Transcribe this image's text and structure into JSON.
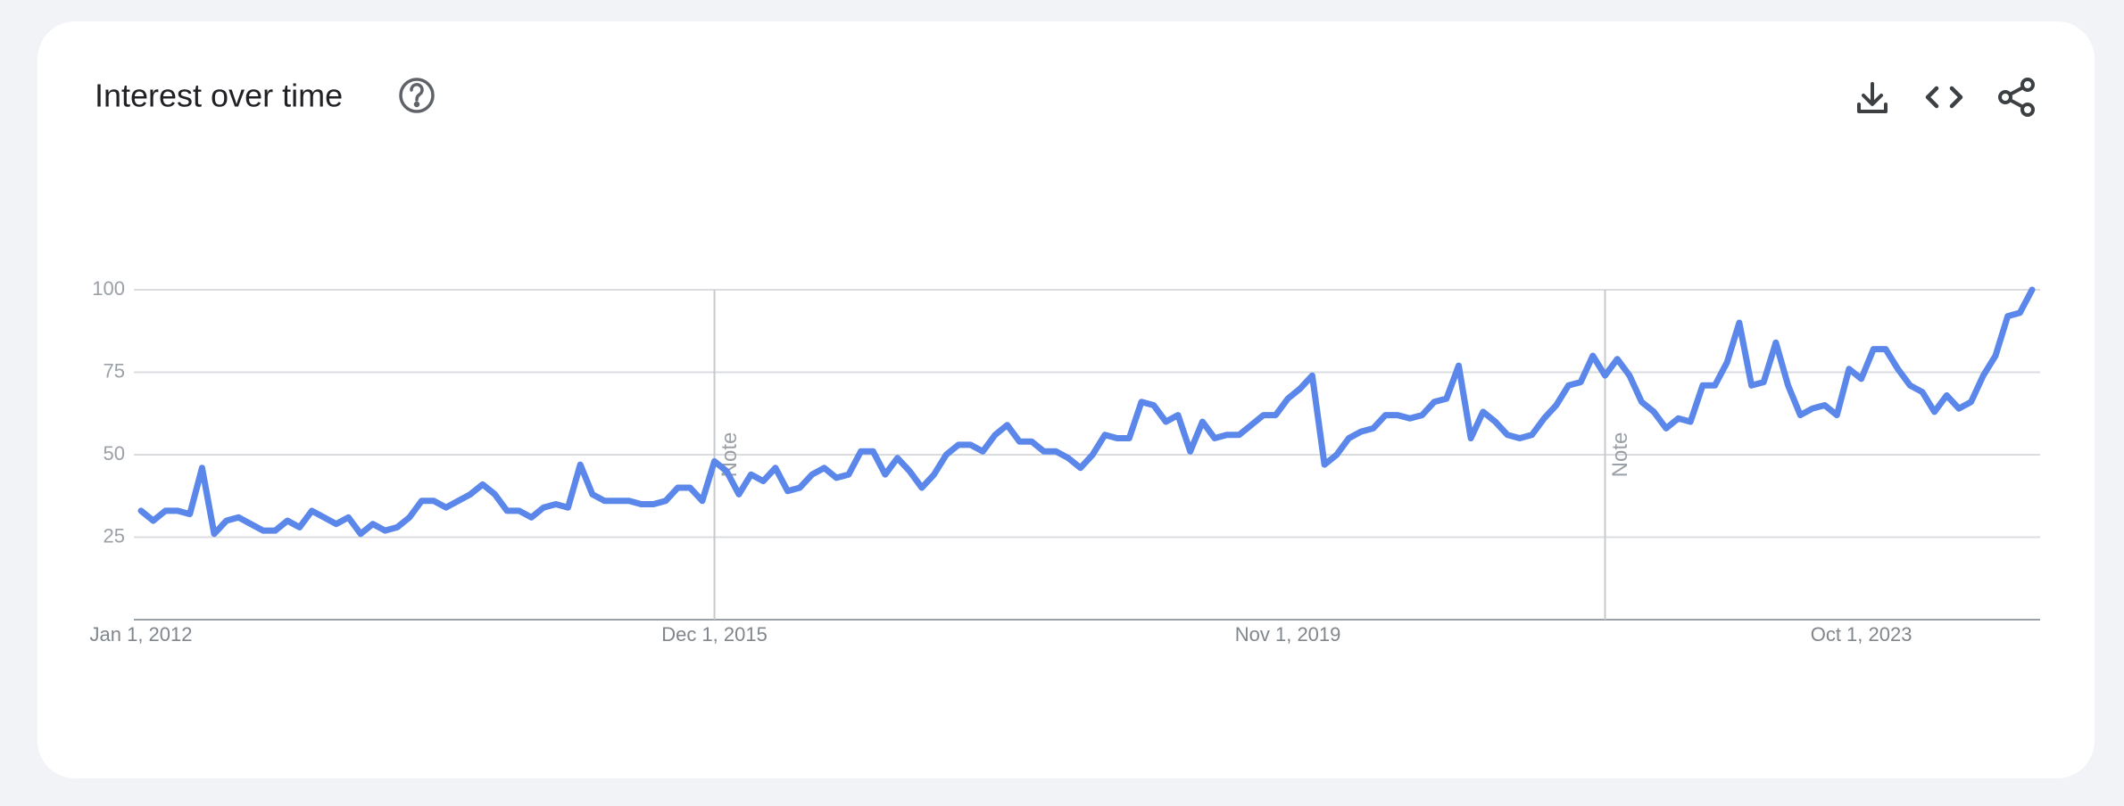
{
  "chart_data": {
    "type": "line",
    "title": "Interest over time",
    "categories": [
      "Jan 1, 2012",
      null,
      null,
      null,
      null,
      null,
      null,
      null,
      null,
      null,
      null,
      null,
      null,
      null,
      null,
      null,
      null,
      null,
      null,
      null,
      null,
      null,
      null,
      null,
      null,
      null,
      null,
      null,
      null,
      null,
      null,
      null,
      null,
      null,
      null,
      null,
      null,
      null,
      null,
      null,
      null,
      null,
      null,
      null,
      null,
      null,
      null,
      "Dec 1, 2015",
      null,
      null,
      null,
      null,
      null,
      null,
      null,
      null,
      null,
      null,
      null,
      null,
      null,
      null,
      null,
      null,
      null,
      null,
      null,
      null,
      null,
      null,
      null,
      null,
      null,
      null,
      null,
      null,
      null,
      null,
      null,
      null,
      null,
      null,
      null,
      null,
      null,
      null,
      null,
      null,
      null,
      null,
      null,
      null,
      null,
      null,
      "Nov 1, 2019",
      null,
      null,
      null,
      null,
      null,
      null,
      null,
      null,
      null,
      null,
      null,
      null,
      null,
      null,
      null,
      null,
      null,
      null,
      null,
      null,
      null,
      null,
      null,
      null,
      null,
      null,
      null,
      null,
      null,
      null,
      null,
      null,
      null,
      null,
      null,
      null,
      null,
      null,
      null,
      null,
      null,
      null,
      null,
      null,
      null,
      null,
      "Oct 1, 2023",
      null,
      null,
      null,
      null,
      null,
      null,
      null,
      null,
      null,
      null,
      null,
      null,
      null,
      null
    ],
    "series": [
      {
        "color": "#5b87ea",
        "values": [
          33,
          30,
          33,
          33,
          32,
          46,
          26,
          30,
          31,
          29,
          27,
          27,
          30,
          28,
          33,
          31,
          29,
          31,
          26,
          29,
          27,
          28,
          31,
          36,
          36,
          34,
          36,
          38,
          41,
          38,
          33,
          33,
          31,
          34,
          35,
          34,
          47,
          38,
          36,
          36,
          36,
          35,
          35,
          36,
          40,
          40,
          36,
          48,
          45,
          38,
          44,
          42,
          46,
          39,
          40,
          44,
          46,
          43,
          44,
          51,
          51,
          44,
          49,
          45,
          40,
          44,
          50,
          53,
          53,
          51,
          56,
          59,
          54,
          54,
          51,
          51,
          49,
          46,
          50,
          56,
          55,
          55,
          66,
          65,
          60,
          62,
          51,
          60,
          55,
          56,
          56,
          59,
          62,
          62,
          67,
          70,
          74,
          47,
          50,
          55,
          57,
          58,
          62,
          62,
          61,
          62,
          66,
          67,
          77,
          55,
          63,
          60,
          56,
          55,
          56,
          61,
          65,
          71,
          72,
          80,
          74,
          79,
          74,
          66,
          63,
          58,
          61,
          60,
          71,
          71,
          78,
          90,
          71,
          72,
          84,
          71,
          62,
          64,
          65,
          62,
          76,
          73,
          82,
          82,
          76,
          71,
          69,
          63,
          68,
          64,
          66,
          74,
          80,
          92,
          93,
          100
        ]
      }
    ],
    "ylim": [
      0,
      100
    ],
    "yticks": [
      25,
      50,
      75,
      100
    ],
    "grid": true,
    "annotations": [
      {
        "text": "Note",
        "category_index": 47
      },
      {
        "text": "Note",
        "category_index": 120
      }
    ]
  }
}
